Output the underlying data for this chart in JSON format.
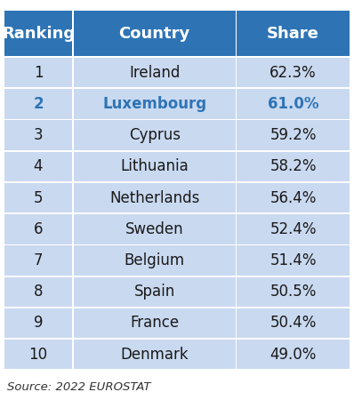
{
  "header_labels": [
    "Ranking",
    "Country",
    "Share"
  ],
  "rows": [
    {
      "rank": "1",
      "country": "Ireland",
      "share": "62.3%",
      "highlight": false
    },
    {
      "rank": "2",
      "country": "Luxembourg",
      "share": "61.0%",
      "highlight": true
    },
    {
      "rank": "3",
      "country": "Cyprus",
      "share": "59.2%",
      "highlight": false
    },
    {
      "rank": "4",
      "country": "Lithuania",
      "share": "58.2%",
      "highlight": false
    },
    {
      "rank": "5",
      "country": "Netherlands",
      "share": "56.4%",
      "highlight": false
    },
    {
      "rank": "6",
      "country": "Sweden",
      "share": "52.4%",
      "highlight": false
    },
    {
      "rank": "7",
      "country": "Belgium",
      "share": "51.4%",
      "highlight": false
    },
    {
      "rank": "8",
      "country": "Spain",
      "share": "50.5%",
      "highlight": false
    },
    {
      "rank": "9",
      "country": "France",
      "share": "50.4%",
      "highlight": false
    },
    {
      "rank": "10",
      "country": "Denmark",
      "share": "49.0%",
      "highlight": false
    }
  ],
  "header_bg_color": "#2E74B5",
  "header_text_color": "#FFFFFF",
  "row_bg_color": "#C9D9F0",
  "highlight_text_color": "#2E74B5",
  "normal_text_color": "#1a1a1a",
  "divider_color": "#FFFFFF",
  "source_text": "Source: 2022 EUROSTAT",
  "header_fontsize": 13,
  "data_fontsize": 12,
  "source_fontsize": 9.5
}
